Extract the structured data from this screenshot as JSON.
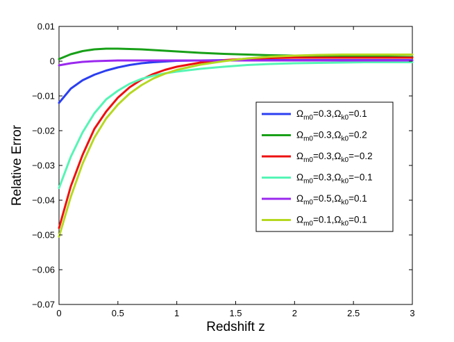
{
  "chart_data": {
    "type": "line",
    "xlabel": "Redshift z",
    "ylabel": "Relative Error",
    "xlim": [
      0,
      3
    ],
    "ylim": [
      -0.07,
      0.01
    ],
    "xticks": [
      0,
      0.5,
      1,
      1.5,
      2,
      2.5,
      3
    ],
    "xtick_labels": [
      "0",
      "0.5",
      "1",
      "1.5",
      "2",
      "2.5",
      "3"
    ],
    "yticks": [
      0.01,
      0,
      -0.01,
      -0.02,
      -0.03,
      -0.04,
      -0.05,
      -0.06,
      -0.07
    ],
    "ytick_labels": [
      "0.01",
      "0",
      "−0.01",
      "−0.02",
      "−0.03",
      "−0.04",
      "−0.05",
      "−0.06",
      "−0.07"
    ],
    "grid": false,
    "legend_position": "right",
    "x": [
      0,
      0.1,
      0.2,
      0.3,
      0.4,
      0.5,
      0.6,
      0.7,
      0.8,
      0.9,
      1.0,
      1.2,
      1.4,
      1.6,
      1.8,
      2.0,
      2.2,
      2.4,
      2.6,
      2.8,
      3.0
    ],
    "series": [
      {
        "name": "Ωm0=0.3,Ωk0=0.1",
        "omega_m": "0.3",
        "omega_k": "0.1",
        "color": "#2b3ff0",
        "values": [
          -0.012,
          -0.0079,
          -0.0055,
          -0.0039,
          -0.0027,
          -0.0018,
          -0.0011,
          -0.0006,
          -0.0003,
          -0.0001,
          0.0001,
          0.0002,
          0.0003,
          0.0003,
          0.0003,
          0.0003,
          0.0003,
          0.0003,
          0.0003,
          0.0003,
          0.0003
        ]
      },
      {
        "name": "Ωm0=0.3,Ωk0=0.2",
        "omega_m": "0.3",
        "omega_k": "0.2",
        "color": "#18a018",
        "values": [
          0.0006,
          0.002,
          0.0029,
          0.0034,
          0.0036,
          0.0036,
          0.0035,
          0.0034,
          0.0032,
          0.003,
          0.0028,
          0.0024,
          0.0021,
          0.0019,
          0.0017,
          0.0016,
          0.0015,
          0.0014,
          0.0013,
          0.0013,
          0.0012
        ]
      },
      {
        "name": "Ωm0=0.3,Ωk0=−0.2",
        "omega_m": "0.3",
        "omega_k": "−0.2",
        "color": "#ee1010",
        "values": [
          -0.048,
          -0.036,
          -0.027,
          -0.0195,
          -0.0145,
          -0.0105,
          -0.0075,
          -0.0053,
          -0.0037,
          -0.0025,
          -0.0016,
          -0.0004,
          0.0003,
          0.0007,
          0.0009,
          0.001,
          0.001,
          0.001,
          0.001,
          0.001,
          0.001
        ]
      },
      {
        "name": "Ωm0=0.3,Ωk0=−0.1",
        "omega_m": "0.3",
        "omega_k": "−0.1",
        "color": "#55f5b5",
        "values": [
          -0.0365,
          -0.0275,
          -0.0205,
          -0.015,
          -0.011,
          -0.0085,
          -0.0065,
          -0.0051,
          -0.0042,
          -0.0035,
          -0.003,
          -0.0022,
          -0.0016,
          -0.0011,
          -0.0008,
          -0.0006,
          -0.0005,
          -0.0004,
          -0.0003,
          -0.0003,
          -0.0003
        ]
      },
      {
        "name": "Ωm0=0.5,Ωk0=0.1",
        "omega_m": "0.5",
        "omega_k": "0.1",
        "color": "#9a28ee",
        "values": [
          -0.0012,
          -0.0006,
          -0.0002,
          0,
          0.0001,
          0.0002,
          0.0002,
          0.0002,
          0.0002,
          0.0002,
          0.0002,
          0.0002,
          0.0002,
          0.0002,
          0.0002,
          0.0002,
          0.0002,
          0.0002,
          0.0002,
          0.0002,
          0.0002
        ]
      },
      {
        "name": "Ωm0=0.1,Ωk0=0.1",
        "omega_m": "0.1",
        "omega_k": "0.1",
        "color": "#b5d820",
        "values": [
          -0.0505,
          -0.039,
          -0.0295,
          -0.022,
          -0.0165,
          -0.0125,
          -0.0093,
          -0.0069,
          -0.005,
          -0.0036,
          -0.0025,
          -0.001,
          0,
          0.0008,
          0.0013,
          0.0016,
          0.0018,
          0.0019,
          0.0019,
          0.0019,
          0.0019
        ]
      }
    ]
  }
}
